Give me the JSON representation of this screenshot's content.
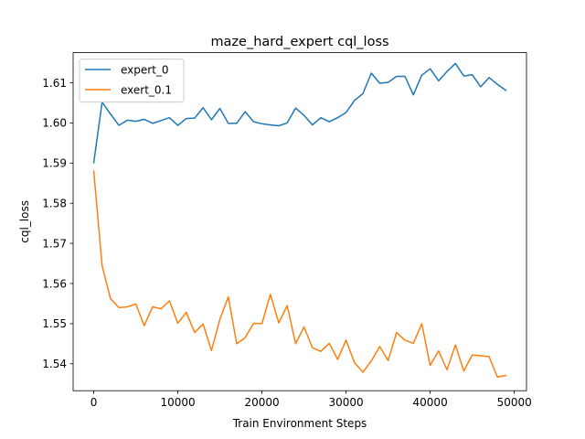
{
  "chart_data": {
    "type": "line",
    "title": "maze_hard_expert cql_loss",
    "xlabel": "Train Environment Steps",
    "ylabel": "cql_loss",
    "xlim": [
      -2450,
      51450
    ],
    "ylim": [
      1.5333,
      1.6175
    ],
    "xticks": [
      0,
      10000,
      20000,
      30000,
      40000,
      50000
    ],
    "xtick_labels": [
      "0",
      "10000",
      "20000",
      "30000",
      "40000",
      "50000"
    ],
    "yticks": [
      1.54,
      1.55,
      1.56,
      1.57,
      1.58,
      1.59,
      1.6,
      1.61
    ],
    "ytick_labels": [
      "1.54",
      "1.55",
      "1.56",
      "1.57",
      "1.58",
      "1.59",
      "1.60",
      "1.61"
    ],
    "grid": false,
    "legend_position": "upper-left",
    "x": [
      0,
      1000,
      2000,
      3000,
      4000,
      5000,
      6000,
      7000,
      8000,
      9000,
      10000,
      11000,
      12000,
      13000,
      14000,
      15000,
      16000,
      17000,
      18000,
      19000,
      20000,
      21000,
      22000,
      23000,
      24000,
      25000,
      26000,
      27000,
      28000,
      29000,
      30000,
      31000,
      32000,
      33000,
      34000,
      35000,
      36000,
      37000,
      38000,
      39000,
      40000,
      41000,
      42000,
      43000,
      44000,
      45000,
      46000,
      47000,
      48000,
      49000
    ],
    "series": [
      {
        "name": "expert_0",
        "color": "#1f77b4",
        "values": [
          1.5901,
          1.6052,
          1.6022,
          1.5994,
          1.6007,
          1.6004,
          1.6009,
          1.5999,
          1.6006,
          1.6013,
          1.5994,
          1.6011,
          1.6012,
          1.6038,
          1.6008,
          1.6036,
          1.5999,
          1.5999,
          1.6028,
          1.6003,
          1.5998,
          1.5995,
          1.5993,
          1.6,
          1.6037,
          1.6019,
          1.5995,
          1.6013,
          1.6003,
          1.6013,
          1.6026,
          1.6056,
          1.6073,
          1.6124,
          1.6099,
          1.6101,
          1.6116,
          1.6116,
          1.607,
          1.6119,
          1.6135,
          1.6105,
          1.6128,
          1.6148,
          1.6117,
          1.612,
          1.609,
          1.6113,
          1.6096,
          1.6081
        ]
      },
      {
        "name": "exert_0.1",
        "color": "#ff7f0e",
        "values": [
          1.588,
          1.5644,
          1.5562,
          1.554,
          1.5542,
          1.5549,
          1.5495,
          1.5542,
          1.5537,
          1.5557,
          1.5501,
          1.5528,
          1.5478,
          1.5499,
          1.5433,
          1.5511,
          1.5567,
          1.545,
          1.5465,
          1.5501,
          1.55,
          1.5573,
          1.5502,
          1.5545,
          1.545,
          1.5492,
          1.544,
          1.5431,
          1.5451,
          1.5411,
          1.5459,
          1.5403,
          1.5379,
          1.5407,
          1.5443,
          1.5408,
          1.5478,
          1.5459,
          1.5451,
          1.55,
          1.5396,
          1.5432,
          1.5385,
          1.5447,
          1.5382,
          1.5422,
          1.542,
          1.5418,
          1.5367,
          1.5371
        ]
      }
    ]
  }
}
